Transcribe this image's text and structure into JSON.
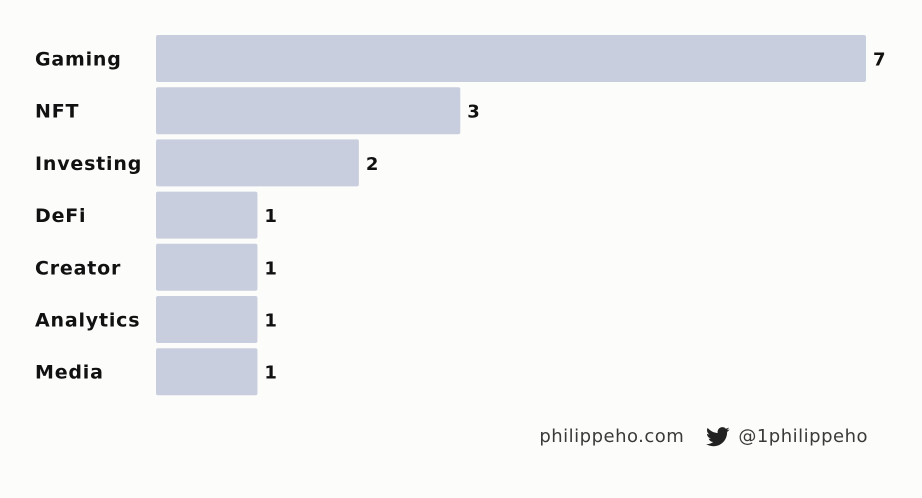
{
  "chart_data": {
    "type": "bar",
    "orientation": "horizontal",
    "categories": [
      "Gaming",
      "NFT",
      "Investing",
      "DeFi",
      "Creator",
      "Analytics",
      "Media"
    ],
    "values": [
      7,
      3,
      2,
      1,
      1,
      1,
      1
    ],
    "title": "",
    "xlabel": "",
    "ylabel": "",
    "xlim": [
      0,
      7
    ],
    "grid": false,
    "legend": "none",
    "bar_color": "#c8cede",
    "text_color": "#111111"
  },
  "footer": {
    "website": "philippeho.com",
    "twitter_handle": "@1philippeho",
    "twitter_icon": "twitter-bird-icon"
  }
}
